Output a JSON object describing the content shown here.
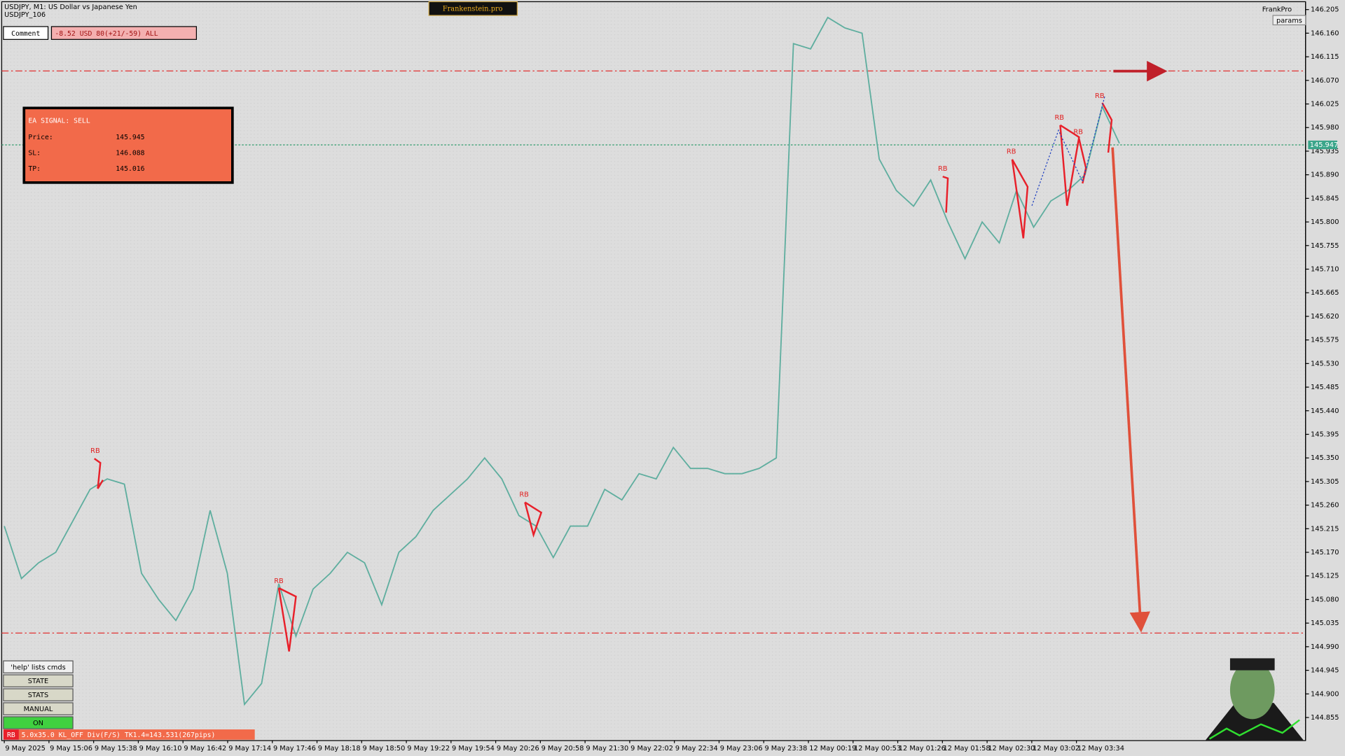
{
  "header": {
    "symbol": "USDJPY, M1: US Dollar vs Japanese Yen",
    "account": "USDJPY_106",
    "brand": "Frankenstein.pro",
    "user": "FrankPro",
    "params": "params"
  },
  "comment": {
    "label": "Comment",
    "value": "-8.52 USD 80(+21/-59) ALL"
  },
  "signal": {
    "title": "EA SIGNAL: SELL",
    "rows": [
      {
        "label": "Price:",
        "value": 145.945
      },
      {
        "label": "SL:",
        "value": 146.088
      },
      {
        "label": "TP:",
        "value": 145.016
      }
    ]
  },
  "buttons": [
    "'help' lists cmds",
    "STATE",
    "STATS",
    "MANUAL",
    "ON"
  ],
  "status": {
    "tag": "RB",
    "text": "5.0x35.0 KL_OFF Div(F/S) TK1.4=143.531(267pips)"
  },
  "chart_data": {
    "type": "line",
    "color": "#5fae9f",
    "ylim": [
      144.811,
      146.22
    ],
    "yticks": [
      146.205,
      {
        "value": 146.16,
        "label": "146.160"
      },
      146.115,
      {
        "value": 146.07,
        "label": "146.070"
      },
      146.025,
      {
        "value": 145.98,
        "label": "145.980"
      },
      145.935,
      {
        "value": 145.89,
        "label": "145.890"
      },
      145.845,
      {
        "value": 145.8,
        "label": "145.800"
      },
      145.755,
      {
        "value": 145.71,
        "label": "145.710"
      },
      145.665,
      {
        "value": 145.62,
        "label": "145.620"
      },
      145.575,
      {
        "value": 145.53,
        "label": "145.530"
      },
      145.485,
      {
        "value": 145.44,
        "label": "145.440"
      },
      145.395,
      {
        "value": 145.35,
        "label": "145.350"
      },
      145.305,
      {
        "value": 145.26,
        "label": "145.260"
      },
      145.215,
      {
        "value": 145.17,
        "label": "145.170"
      },
      145.125,
      {
        "value": 145.08,
        "label": "145.080"
      },
      145.035,
      {
        "value": 144.99,
        "label": "144.990"
      },
      144.945,
      {
        "value": 144.9,
        "label": "144.900"
      },
      144.855
    ],
    "x_labels": [
      "9 May 2025",
      "9 May 15:06",
      "9 May 15:38",
      "9 May 16:10",
      "9 May 16:42",
      "9 May 17:14",
      "9 May 17:46",
      "9 May 18:18",
      "9 May 18:50",
      "9 May 19:22",
      "9 May 19:54",
      "9 May 20:26",
      "9 May 20:58",
      "9 May 21:30",
      "9 May 22:02",
      "9 May 22:34",
      "9 May 23:06",
      "9 May 23:38",
      "12 May 00:19",
      "12 May 00:53",
      "12 May 01:26",
      "12 May 01:58",
      "12 May 02:30",
      "12 May 03:02",
      "12 May 03:34"
    ],
    "values": [
      145.22,
      145.12,
      145.15,
      145.17,
      145.23,
      145.29,
      145.31,
      145.3,
      145.13,
      145.08,
      145.04,
      145.1,
      145.25,
      145.13,
      144.88,
      144.92,
      145.11,
      145.01,
      145.1,
      145.13,
      145.17,
      145.15,
      145.07,
      145.17,
      145.2,
      145.25,
      145.28,
      145.31,
      145.35,
      145.31,
      145.24,
      145.22,
      145.16,
      145.22,
      145.22,
      145.29,
      145.27,
      145.32,
      145.31,
      145.37,
      145.33,
      145.33,
      145.32,
      145.32,
      145.33,
      145.35,
      146.14,
      146.13,
      146.19,
      146.17,
      146.16,
      145.92,
      145.86,
      145.83,
      145.88,
      145.8,
      145.73,
      145.8,
      145.76,
      145.86,
      145.79,
      145.84,
      145.86,
      145.89,
      146.02,
      145.95
    ],
    "current_price": 145.947,
    "annotations": [
      "RB",
      "RB",
      "RB",
      "RB",
      "RB",
      "RB",
      "RB",
      "RB"
    ]
  }
}
